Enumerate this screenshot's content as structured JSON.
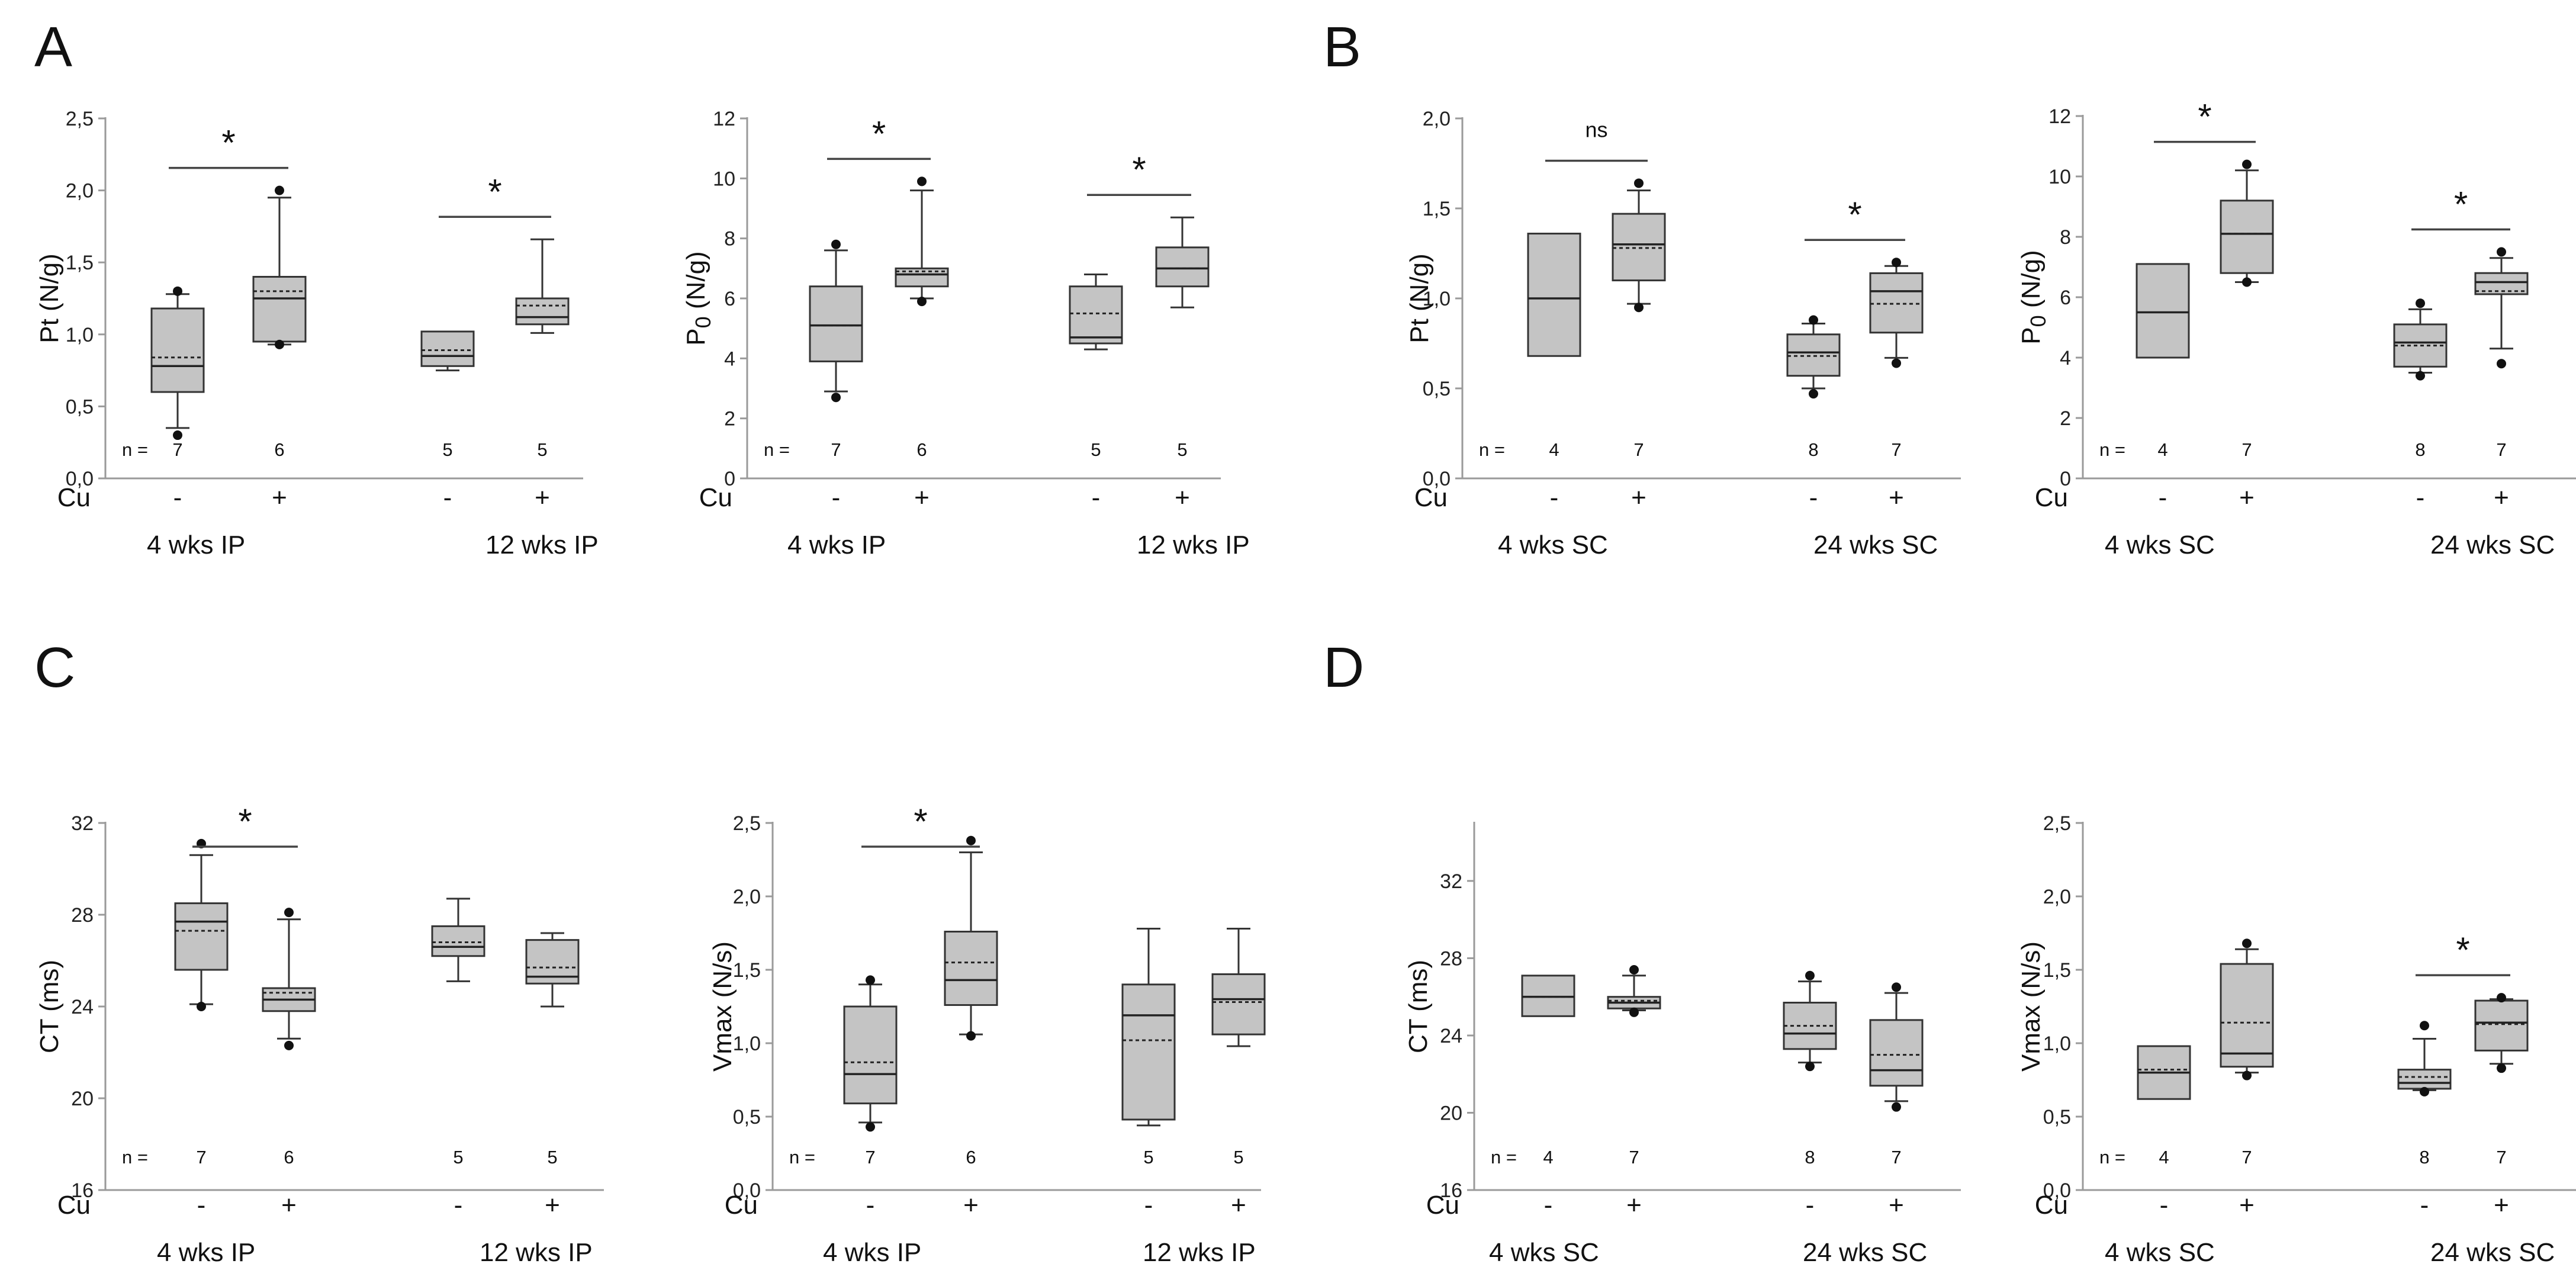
{
  "panel_letters": [
    {
      "id": "A",
      "text": "A"
    },
    {
      "id": "B",
      "text": "B"
    },
    {
      "id": "C",
      "text": "C"
    },
    {
      "id": "D",
      "text": "D"
    }
  ],
  "chart_data": [
    {
      "type": "box",
      "panel": "A",
      "ylabel": "Pt (N/g)",
      "ylim": [
        0,
        2.5
      ],
      "yticks": [
        "0,0",
        "0,5",
        "1,0",
        "1,5",
        "2,0",
        "2,5"
      ],
      "row_labels": {
        "n": "n =",
        "cu": "Cu"
      },
      "groups": [
        {
          "label": "4 wks IP",
          "boxes": [
            {
              "cu": "-",
              "n": "7",
              "q1": 0.6,
              "median": 0.78,
              "q3": 1.18,
              "whisker_low": 0.35,
              "whisker_high": 1.28,
              "mean": 0.84,
              "outliers": [
                0.3,
                1.3
              ]
            },
            {
              "cu": "+",
              "n": "6",
              "q1": 0.95,
              "median": 1.25,
              "q3": 1.4,
              "whisker_low": 0.93,
              "whisker_high": 1.95,
              "mean": 1.3,
              "outliers": [
                0.93,
                2.0
              ]
            }
          ],
          "annotation": "*"
        },
        {
          "label": "12 wks IP",
          "boxes": [
            {
              "cu": "-",
              "n": "5",
              "q1": 0.78,
              "median": 0.85,
              "q3": 1.02,
              "whisker_low": 0.75,
              "whisker_high": 1.02,
              "mean": 0.89,
              "outliers": []
            },
            {
              "cu": "+",
              "n": "5",
              "q1": 1.07,
              "median": 1.12,
              "q3": 1.25,
              "whisker_low": 1.01,
              "whisker_high": 1.66,
              "mean": 1.2,
              "outliers": []
            }
          ],
          "annotation": "*"
        }
      ]
    },
    {
      "type": "box",
      "panel": "A",
      "ylabel": "P0 (N/g)",
      "ylim": [
        0,
        12
      ],
      "yticks": [
        "0",
        "2",
        "4",
        "6",
        "8",
        "10",
        "12"
      ],
      "row_labels": {
        "n": "n =",
        "cu": "Cu"
      },
      "groups": [
        {
          "label": "4 wks IP",
          "boxes": [
            {
              "cu": "-",
              "n": "7",
              "q1": 3.9,
              "median": 5.1,
              "q3": 6.4,
              "whisker_low": 2.9,
              "whisker_high": 7.6,
              "mean": 5.1,
              "outliers": [
                2.7,
                7.8
              ]
            },
            {
              "cu": "+",
              "n": "6",
              "q1": 6.4,
              "median": 6.8,
              "q3": 7.0,
              "whisker_low": 6.0,
              "whisker_high": 9.6,
              "mean": 6.9,
              "outliers": [
                5.9,
                9.9
              ]
            }
          ],
          "annotation": "*"
        },
        {
          "label": "12 wks IP",
          "boxes": [
            {
              "cu": "-",
              "n": "5",
              "q1": 4.5,
              "median": 4.7,
              "q3": 6.4,
              "whisker_low": 4.3,
              "whisker_high": 6.8,
              "mean": 5.5,
              "outliers": []
            },
            {
              "cu": "+",
              "n": "5",
              "q1": 6.4,
              "median": 7.0,
              "q3": 7.7,
              "whisker_low": 5.7,
              "whisker_high": 8.7,
              "mean": 7.0,
              "outliers": []
            }
          ],
          "annotation": "*"
        }
      ]
    },
    {
      "type": "box",
      "panel": "B",
      "ylabel": "Pt (N/g)",
      "ylim": [
        0,
        2.0
      ],
      "yticks": [
        "0,0",
        "0,5",
        "1,0",
        "1,5",
        "2,0"
      ],
      "row_labels": {
        "n": "n =",
        "cu": "Cu"
      },
      "groups": [
        {
          "label": "4 wks SC",
          "boxes": [
            {
              "cu": "-",
              "n": "4",
              "q1": 0.68,
              "median": 1.0,
              "q3": 1.36,
              "whisker_low": 0.68,
              "whisker_high": 1.36,
              "mean": 1.0,
              "outliers": []
            },
            {
              "cu": "+",
              "n": "7",
              "q1": 1.1,
              "median": 1.3,
              "q3": 1.47,
              "whisker_low": 0.97,
              "whisker_high": 1.6,
              "mean": 1.28,
              "outliers": [
                0.95,
                1.64
              ]
            }
          ],
          "annotation": "ns"
        },
        {
          "label": "24 wks SC",
          "boxes": [
            {
              "cu": "-",
              "n": "8",
              "q1": 0.57,
              "median": 0.7,
              "q3": 0.8,
              "whisker_low": 0.5,
              "whisker_high": 0.86,
              "mean": 0.68,
              "outliers": [
                0.47,
                0.88
              ]
            },
            {
              "cu": "+",
              "n": "7",
              "q1": 0.81,
              "median": 1.04,
              "q3": 1.14,
              "whisker_low": 0.67,
              "whisker_high": 1.18,
              "mean": 0.97,
              "outliers": [
                0.64,
                1.2
              ]
            }
          ],
          "annotation": "*"
        }
      ]
    },
    {
      "type": "box",
      "panel": "B",
      "ylabel": "P0 (N/g)",
      "ylim": [
        0,
        12
      ],
      "yticks": [
        "0",
        "2",
        "4",
        "6",
        "8",
        "10",
        "12"
      ],
      "row_labels": {
        "n": "n =",
        "cu": "Cu"
      },
      "groups": [
        {
          "label": "4 wks SC",
          "boxes": [
            {
              "cu": "-",
              "n": "4",
              "q1": 4.0,
              "median": 5.5,
              "q3": 7.1,
              "whisker_low": 4.0,
              "whisker_high": 7.1,
              "mean": 5.5,
              "outliers": []
            },
            {
              "cu": "+",
              "n": "7",
              "q1": 6.8,
              "median": 8.1,
              "q3": 9.2,
              "whisker_low": 6.5,
              "whisker_high": 10.2,
              "mean": 8.1,
              "outliers": [
                6.5,
                10.4
              ]
            }
          ],
          "annotation": "*"
        },
        {
          "label": "24 wks SC",
          "boxes": [
            {
              "cu": "-",
              "n": "8",
              "q1": 3.7,
              "median": 4.5,
              "q3": 5.1,
              "whisker_low": 3.5,
              "whisker_high": 5.6,
              "mean": 4.4,
              "outliers": [
                3.4,
                5.8
              ]
            },
            {
              "cu": "+",
              "n": "7",
              "q1": 6.1,
              "median": 6.5,
              "q3": 6.8,
              "whisker_low": 4.3,
              "whisker_high": 7.3,
              "mean": 6.2,
              "outliers": [
                3.8,
                7.5
              ]
            }
          ],
          "annotation": "*"
        }
      ]
    },
    {
      "type": "box",
      "panel": "C",
      "ylabel": "CT (ms)",
      "ylim": [
        16,
        32
      ],
      "yticks": [
        "16",
        "20",
        "24",
        "28",
        "32"
      ],
      "row_labels": {
        "n": "n =",
        "cu": "Cu"
      },
      "groups": [
        {
          "label": "4 wks IP",
          "boxes": [
            {
              "cu": "-",
              "n": "7",
              "q1": 25.6,
              "median": 27.7,
              "q3": 28.5,
              "whisker_low": 24.1,
              "whisker_high": 30.6,
              "mean": 27.3,
              "outliers": [
                24.0,
                31.1
              ]
            },
            {
              "cu": "+",
              "n": "6",
              "q1": 23.8,
              "median": 24.3,
              "q3": 24.8,
              "whisker_low": 22.6,
              "whisker_high": 27.8,
              "mean": 24.6,
              "outliers": [
                22.3,
                28.1
              ]
            }
          ],
          "annotation": "*"
        },
        {
          "label": "12 wks IP",
          "boxes": [
            {
              "cu": "-",
              "n": "5",
              "q1": 26.2,
              "median": 26.6,
              "q3": 27.5,
              "whisker_low": 25.1,
              "whisker_high": 28.7,
              "mean": 26.8,
              "outliers": []
            },
            {
              "cu": "+",
              "n": "5",
              "q1": 25.0,
              "median": 25.3,
              "q3": 26.9,
              "whisker_low": 24.0,
              "whisker_high": 27.2,
              "mean": 25.7,
              "outliers": []
            }
          ],
          "annotation": ""
        }
      ]
    },
    {
      "type": "box",
      "panel": "C",
      "ylabel": "Vmax (N/s)",
      "ylim": [
        0,
        2.5
      ],
      "yticks": [
        "0,0",
        "0,5",
        "1,0",
        "1,5",
        "2,0",
        "2,5"
      ],
      "row_labels": {
        "n": "n =",
        "cu": "Cu"
      },
      "groups": [
        {
          "label": "4 wks IP",
          "boxes": [
            {
              "cu": "-",
              "n": "7",
              "q1": 0.59,
              "median": 0.79,
              "q3": 1.25,
              "whisker_low": 0.46,
              "whisker_high": 1.4,
              "mean": 0.87,
              "outliers": [
                0.43,
                1.43
              ]
            },
            {
              "cu": "+",
              "n": "6",
              "q1": 1.26,
              "median": 1.43,
              "q3": 1.76,
              "whisker_low": 1.06,
              "whisker_high": 2.3,
              "mean": 1.55,
              "outliers": [
                1.05,
                2.38
              ]
            }
          ],
          "annotation": "*"
        },
        {
          "label": "12 wks IP",
          "boxes": [
            {
              "cu": "-",
              "n": "5",
              "q1": 0.48,
              "median": 1.19,
              "q3": 1.4,
              "whisker_low": 0.44,
              "whisker_high": 1.78,
              "mean": 1.02,
              "outliers": []
            },
            {
              "cu": "+",
              "n": "5",
              "q1": 1.06,
              "median": 1.3,
              "q3": 1.47,
              "whisker_low": 0.98,
              "whisker_high": 1.78,
              "mean": 1.28,
              "outliers": []
            }
          ],
          "annotation": ""
        }
      ]
    },
    {
      "type": "box",
      "panel": "D",
      "ylabel": "CT (ms)",
      "ylim": [
        16,
        35
      ],
      "yticks": [
        "16",
        "20",
        "24",
        "28",
        "32"
      ],
      "row_labels": {
        "n": "n =",
        "cu": "Cu"
      },
      "groups": [
        {
          "label": "4 wks SC",
          "boxes": [
            {
              "cu": "-",
              "n": "4",
              "q1": 25.0,
              "median": 26.0,
              "q3": 27.1,
              "whisker_low": 25.0,
              "whisker_high": 27.1,
              "mean": 26.0,
              "outliers": []
            },
            {
              "cu": "+",
              "n": "7",
              "q1": 25.4,
              "median": 25.7,
              "q3": 26.0,
              "whisker_low": 25.3,
              "whisker_high": 27.1,
              "mean": 25.8,
              "outliers": [
                25.2,
                27.4
              ]
            }
          ],
          "annotation": ""
        },
        {
          "label": "24 wks SC",
          "boxes": [
            {
              "cu": "-",
              "n": "8",
              "q1": 23.3,
              "median": 24.1,
              "q3": 25.7,
              "whisker_low": 22.6,
              "whisker_high": 26.8,
              "mean": 24.5,
              "outliers": [
                22.4,
                27.1
              ]
            },
            {
              "cu": "+",
              "n": "7",
              "q1": 21.4,
              "median": 22.2,
              "q3": 24.8,
              "whisker_low": 20.6,
              "whisker_high": 26.2,
              "mean": 23.0,
              "outliers": [
                20.3,
                26.5
              ]
            }
          ],
          "annotation": ""
        }
      ]
    },
    {
      "type": "box",
      "panel": "D",
      "ylabel": "Vmax (N/s)",
      "ylim": [
        0,
        2.5
      ],
      "yticks": [
        "0,0",
        "0,5",
        "1,0",
        "1,5",
        "2,0",
        "2,5"
      ],
      "row_labels": {
        "n": "n =",
        "cu": "Cu"
      },
      "groups": [
        {
          "label": "4 wks SC",
          "boxes": [
            {
              "cu": "-",
              "n": "4",
              "q1": 0.62,
              "median": 0.8,
              "q3": 0.98,
              "whisker_low": 0.62,
              "whisker_high": 0.98,
              "mean": 0.82,
              "outliers": []
            },
            {
              "cu": "+",
              "n": "7",
              "q1": 0.84,
              "median": 0.93,
              "q3": 1.54,
              "whisker_low": 0.8,
              "whisker_high": 1.64,
              "mean": 1.14,
              "outliers": [
                0.78,
                1.68
              ]
            }
          ],
          "annotation": ""
        },
        {
          "label": "24 wks SC",
          "boxes": [
            {
              "cu": "-",
              "n": "8",
              "q1": 0.69,
              "median": 0.73,
              "q3": 0.82,
              "whisker_low": 0.68,
              "whisker_high": 1.03,
              "mean": 0.77,
              "outliers": [
                0.67,
                1.12
              ]
            },
            {
              "cu": "+",
              "n": "7",
              "q1": 0.95,
              "median": 1.14,
              "q3": 1.29,
              "whisker_low": 0.86,
              "whisker_high": 1.3,
              "mean": 1.13,
              "outliers": [
                0.83,
                1.31
              ]
            }
          ],
          "annotation": "*"
        }
      ]
    }
  ]
}
